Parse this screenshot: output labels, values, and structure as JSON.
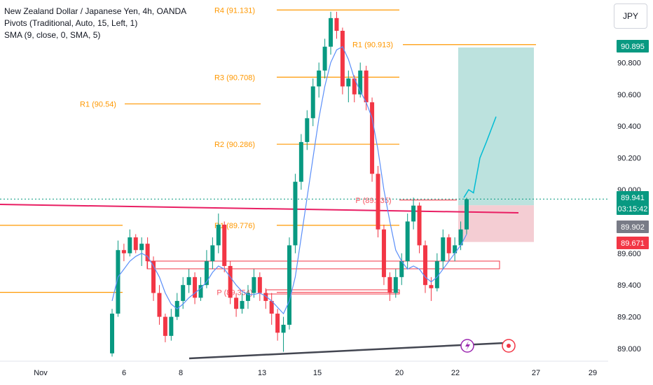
{
  "legend": {
    "symbol": "New Zealand Dollar / Japanese Yen, 4h, OANDA",
    "pivots": "Pivots (Traditional, Auto, 15, Left, 1)",
    "sma": "SMA (9, close, 0, SMA, 5)"
  },
  "currency_button": "JPY",
  "chart_data": {
    "type": "candlestick",
    "title": "New Zealand Dollar / Japanese Yen, 4h, OANDA",
    "ylim": [
      88.98,
      91.12
    ],
    "y_ticks": [
      "90.800",
      "90.600",
      "90.400",
      "90.200",
      "90.000",
      "89.600",
      "89.400",
      "89.200",
      "89.000"
    ],
    "x_ticks": [
      "Nov",
      "6",
      "8",
      "13",
      "15",
      "20",
      "22",
      "27",
      "29"
    ],
    "price_labels": [
      {
        "text": "90.895",
        "value": 90.895,
        "color": "#089981"
      },
      {
        "text": "89.941",
        "value": 89.941,
        "color": "#089981"
      },
      {
        "text": "03:15:42",
        "value": 89.85,
        "color": "#089981"
      },
      {
        "text": "89.902",
        "value": 89.902,
        "color": "#787b86"
      },
      {
        "text": "89.671",
        "value": 89.671,
        "color": "#f23645"
      }
    ],
    "pivot_labels": [
      {
        "text": "R4 (91.131)",
        "value": 91.131
      },
      {
        "text": "R1 (90.913)",
        "value": 90.913
      },
      {
        "text": "R3 (90.708)",
        "value": 90.708
      },
      {
        "text": "R1 (90.54)",
        "value": 90.54
      },
      {
        "text": "R2 (90.286)",
        "value": 90.286
      },
      {
        "text": "R1 (89.776)",
        "value": 89.776
      },
      {
        "text": "P (89.935)",
        "value": 89.935
      },
      {
        "text": "P (89.354)",
        "value": 89.354
      }
    ],
    "position": {
      "entry": 89.902,
      "target": 90.895,
      "stop": 89.671
    },
    "candles": [
      [
        88.97,
        89.25,
        88.95,
        89.22
      ],
      [
        89.22,
        89.68,
        89.2,
        89.62
      ],
      [
        89.62,
        89.66,
        89.55,
        89.6
      ],
      [
        89.6,
        89.75,
        89.58,
        89.7
      ],
      [
        89.7,
        89.72,
        89.6,
        89.62
      ],
      [
        89.62,
        89.7,
        89.52,
        89.66
      ],
      [
        89.66,
        89.7,
        89.5,
        89.55
      ],
      [
        89.55,
        89.58,
        89.3,
        89.35
      ],
      [
        89.35,
        89.4,
        89.15,
        89.2
      ],
      [
        89.2,
        89.22,
        89.04,
        89.08
      ],
      [
        89.08,
        89.25,
        89.05,
        89.2
      ],
      [
        89.2,
        89.35,
        89.18,
        89.3
      ],
      [
        89.3,
        89.45,
        89.25,
        89.4
      ],
      [
        89.4,
        89.5,
        89.35,
        89.45
      ],
      [
        89.45,
        89.48,
        89.28,
        89.32
      ],
      [
        89.32,
        89.45,
        89.3,
        89.4
      ],
      [
        89.4,
        89.62,
        89.38,
        89.55
      ],
      [
        89.55,
        89.7,
        89.5,
        89.65
      ],
      [
        89.65,
        89.85,
        89.6,
        89.78
      ],
      [
        89.78,
        89.8,
        89.48,
        89.52
      ],
      [
        89.52,
        89.55,
        89.28,
        89.32
      ],
      [
        89.32,
        89.35,
        89.2,
        89.25
      ],
      [
        89.25,
        89.35,
        89.22,
        89.3
      ],
      [
        89.3,
        89.4,
        89.25,
        89.35
      ],
      [
        89.35,
        89.5,
        89.32,
        89.45
      ],
      [
        89.45,
        89.48,
        89.3,
        89.35
      ],
      [
        89.35,
        89.38,
        89.25,
        89.3
      ],
      [
        89.3,
        89.35,
        89.15,
        89.22
      ],
      [
        89.22,
        89.25,
        89.05,
        89.1
      ],
      [
        89.1,
        89.2,
        88.98,
        89.15
      ],
      [
        89.15,
        89.7,
        89.12,
        89.65
      ],
      [
        89.65,
        90.1,
        89.6,
        90.05
      ],
      [
        90.05,
        90.35,
        90.0,
        90.3
      ],
      [
        90.3,
        90.5,
        90.25,
        90.45
      ],
      [
        90.45,
        90.7,
        90.4,
        90.65
      ],
      [
        90.65,
        90.8,
        90.58,
        90.75
      ],
      [
        90.75,
        90.95,
        90.7,
        90.9
      ],
      [
        90.9,
        91.12,
        90.85,
        91.08
      ],
      [
        91.08,
        91.12,
        90.95,
        91.0
      ],
      [
        91.0,
        91.02,
        90.6,
        90.65
      ],
      [
        90.65,
        90.75,
        90.55,
        90.7
      ],
      [
        90.7,
        90.72,
        90.55,
        90.6
      ],
      [
        90.6,
        90.8,
        90.58,
        90.75
      ],
      [
        90.75,
        90.78,
        90.5,
        90.55
      ],
      [
        90.55,
        90.58,
        90.05,
        90.1
      ],
      [
        90.1,
        90.15,
        89.7,
        89.75
      ],
      [
        89.75,
        89.78,
        89.4,
        89.45
      ],
      [
        89.45,
        89.48,
        89.3,
        89.35
      ],
      [
        89.35,
        89.5,
        89.32,
        89.45
      ],
      [
        89.45,
        89.6,
        89.4,
        89.55
      ],
      [
        89.55,
        89.85,
        89.5,
        89.8
      ],
      [
        89.8,
        89.95,
        89.75,
        89.9
      ],
      [
        89.9,
        89.92,
        89.6,
        89.65
      ],
      [
        89.65,
        89.68,
        89.35,
        89.4
      ],
      [
        89.4,
        89.45,
        89.3,
        89.38
      ],
      [
        89.38,
        89.6,
        89.36,
        89.55
      ],
      [
        89.55,
        89.75,
        89.5,
        89.7
      ],
      [
        89.7,
        89.72,
        89.55,
        89.6
      ],
      [
        89.6,
        89.7,
        89.55,
        89.65
      ],
      [
        89.65,
        89.8,
        89.62,
        89.75
      ],
      [
        89.75,
        89.95,
        89.72,
        89.941
      ]
    ],
    "sma": [
      89.3,
      89.45,
      89.5,
      89.55,
      89.58,
      89.6,
      89.58,
      89.52,
      89.45,
      89.35,
      89.28,
      89.25,
      89.28,
      89.32,
      89.35,
      89.38,
      89.42,
      89.48,
      89.52,
      89.5,
      89.45,
      89.4,
      89.36,
      89.34,
      89.34,
      89.35,
      89.33,
      89.3,
      89.26,
      89.22,
      89.3,
      89.45,
      89.7,
      89.95,
      90.2,
      90.45,
      90.65,
      90.8,
      90.88,
      90.9,
      90.82,
      90.7,
      90.62,
      90.55,
      90.45,
      90.25,
      90.0,
      89.8,
      89.62,
      89.55,
      89.5,
      89.52,
      89.5,
      89.45,
      89.42,
      89.45,
      89.5,
      89.55,
      89.6,
      89.65,
      89.72
    ],
    "projection": [
      [
        89.95,
        0
      ],
      [
        90.0,
        0.15
      ],
      [
        89.98,
        0.3
      ],
      [
        90.2,
        0.5
      ],
      [
        90.3,
        0.7
      ],
      [
        90.46,
        1.0
      ]
    ]
  }
}
